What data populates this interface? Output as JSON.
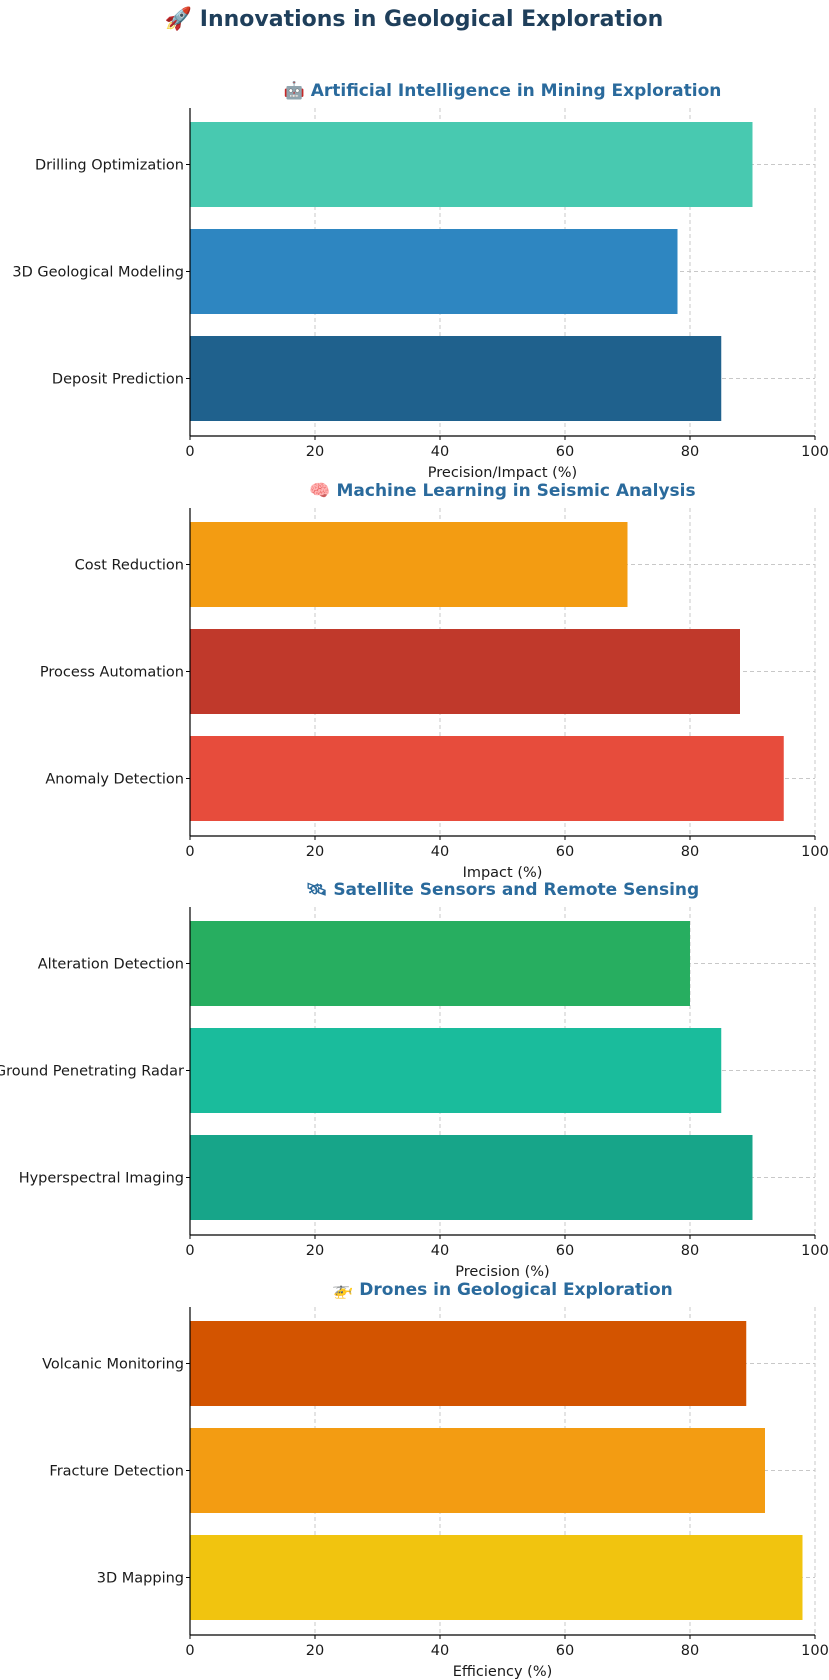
{
  "figure": {
    "title": "🚀 Innovations in Geological Exploration"
  },
  "chart_data": [
    {
      "type": "bar",
      "orientation": "horizontal",
      "title": "🤖 Artificial Intelligence in Mining Exploration",
      "categories": [
        "Deposit Prediction",
        "3D Geological Modeling",
        "Drilling Optimization"
      ],
      "values": [
        85,
        78,
        90
      ],
      "colors": [
        "#1f618d",
        "#2e86c1",
        "#48c9b0"
      ],
      "xlabel": "Precision/Impact (%)",
      "ylabel": "",
      "xlim": [
        0,
        100
      ],
      "xticks": [
        0,
        20,
        40,
        60,
        80,
        100
      ],
      "grid": true
    },
    {
      "type": "bar",
      "orientation": "horizontal",
      "title": "🧠 Machine Learning in Seismic Analysis",
      "categories": [
        "Anomaly Detection",
        "Process Automation",
        "Cost Reduction"
      ],
      "values": [
        95,
        88,
        70
      ],
      "colors": [
        "#e74c3c",
        "#c0392b",
        "#f39c12"
      ],
      "xlabel": "Impact (%)",
      "ylabel": "",
      "xlim": [
        0,
        100
      ],
      "xticks": [
        0,
        20,
        40,
        60,
        80,
        100
      ],
      "grid": true
    },
    {
      "type": "bar",
      "orientation": "horizontal",
      "title": "🛰 Satellite Sensors and Remote Sensing",
      "categories": [
        "Hyperspectral Imaging",
        "Ground Penetrating Radar",
        "Alteration Detection"
      ],
      "values": [
        90,
        85,
        80
      ],
      "colors": [
        "#17a589",
        "#1abc9c",
        "#27ae60"
      ],
      "xlabel": "Precision (%)",
      "ylabel": "",
      "xlim": [
        0,
        100
      ],
      "xticks": [
        0,
        20,
        40,
        60,
        80,
        100
      ],
      "grid": true
    },
    {
      "type": "bar",
      "orientation": "horizontal",
      "title": "🚁 Drones in Geological Exploration",
      "categories": [
        "3D Mapping",
        "Fracture Detection",
        "Volcanic Monitoring"
      ],
      "values": [
        98,
        92,
        89
      ],
      "colors": [
        "#f1c40f",
        "#f39c12",
        "#d35400"
      ],
      "xlabel": "Efficiency (%)",
      "ylabel": "",
      "xlim": [
        0,
        100
      ],
      "xticks": [
        0,
        20,
        40,
        60,
        80,
        100
      ],
      "grid": true
    }
  ]
}
